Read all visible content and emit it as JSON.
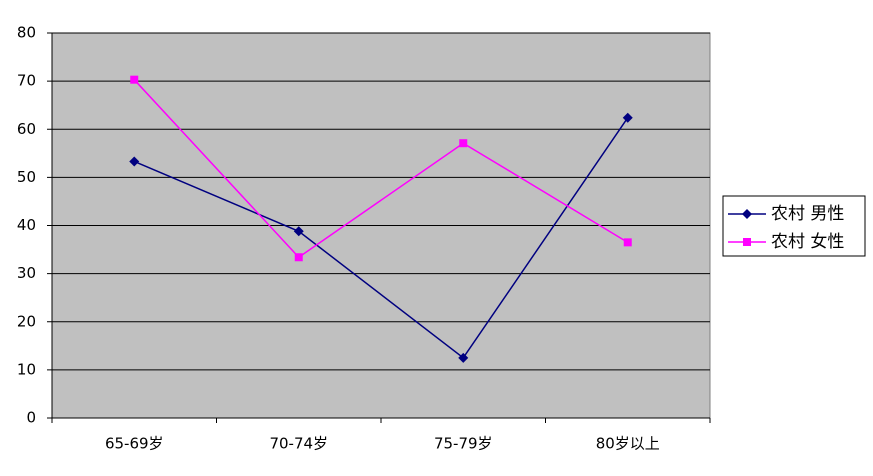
{
  "chart_data": {
    "type": "line",
    "categories": [
      "65-69岁",
      "70-74岁",
      "75-79岁",
      "80岁以上"
    ],
    "series": [
      {
        "name": "农村 男性",
        "color": "#000080",
        "marker": "diamond",
        "values": [
          53.3,
          38.8,
          12.5,
          62.4
        ]
      },
      {
        "name": "农村 女性",
        "color": "#ff00ff",
        "marker": "square",
        "values": [
          70.3,
          33.4,
          57.1,
          36.5
        ]
      }
    ],
    "ylim": [
      0,
      80
    ],
    "yticks": [
      0,
      10,
      20,
      30,
      40,
      50,
      60,
      70,
      80
    ],
    "grid": true,
    "legend": "right"
  }
}
